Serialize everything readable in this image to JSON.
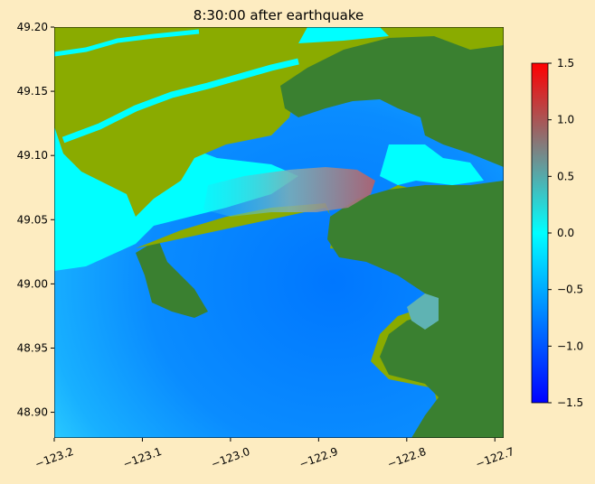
{
  "chart_data": {
    "type": "heatmap",
    "title": "8:30:00 after earthquake",
    "xlabel": "",
    "ylabel": "",
    "xlim": [
      -123.2,
      -122.69
    ],
    "ylim": [
      48.88,
      49.2
    ],
    "x_ticks": [
      -123.2,
      -123.1,
      -123.0,
      -122.9,
      -122.8,
      -122.7
    ],
    "x_tick_labels": [
      "−123.2",
      "−123.1",
      "−123.0",
      "−122.9",
      "−122.8",
      "−122.7"
    ],
    "y_ticks": [
      48.9,
      48.95,
      49.0,
      49.05,
      49.1,
      49.15,
      49.2
    ],
    "y_tick_labels": [
      "48.90",
      "48.95",
      "49.00",
      "49.05",
      "49.10",
      "49.15",
      "49.20"
    ],
    "colorbar": {
      "min": -1.5,
      "max": 1.5,
      "ticks": [
        -1.5,
        -1.0,
        -0.5,
        0.0,
        0.5,
        1.0,
        1.5
      ],
      "tick_labels": [
        "−1.5",
        "−1.0",
        "−0.5",
        "0.0",
        "0.5",
        "1.0",
        "1.5"
      ],
      "colors": [
        "#0000ff",
        "#00ffff",
        "#ff0000"
      ]
    },
    "land_colors": {
      "lowland": "#8aab00",
      "upland": "#3a8030",
      "flooded": "#00ffff"
    },
    "sea_colors": {
      "deep_negative": "#0077ff",
      "near_zero": "#22ccff",
      "positive": "#5fb3b3",
      "peak_positive": "#b0626e"
    },
    "background": "#fdecc1"
  }
}
